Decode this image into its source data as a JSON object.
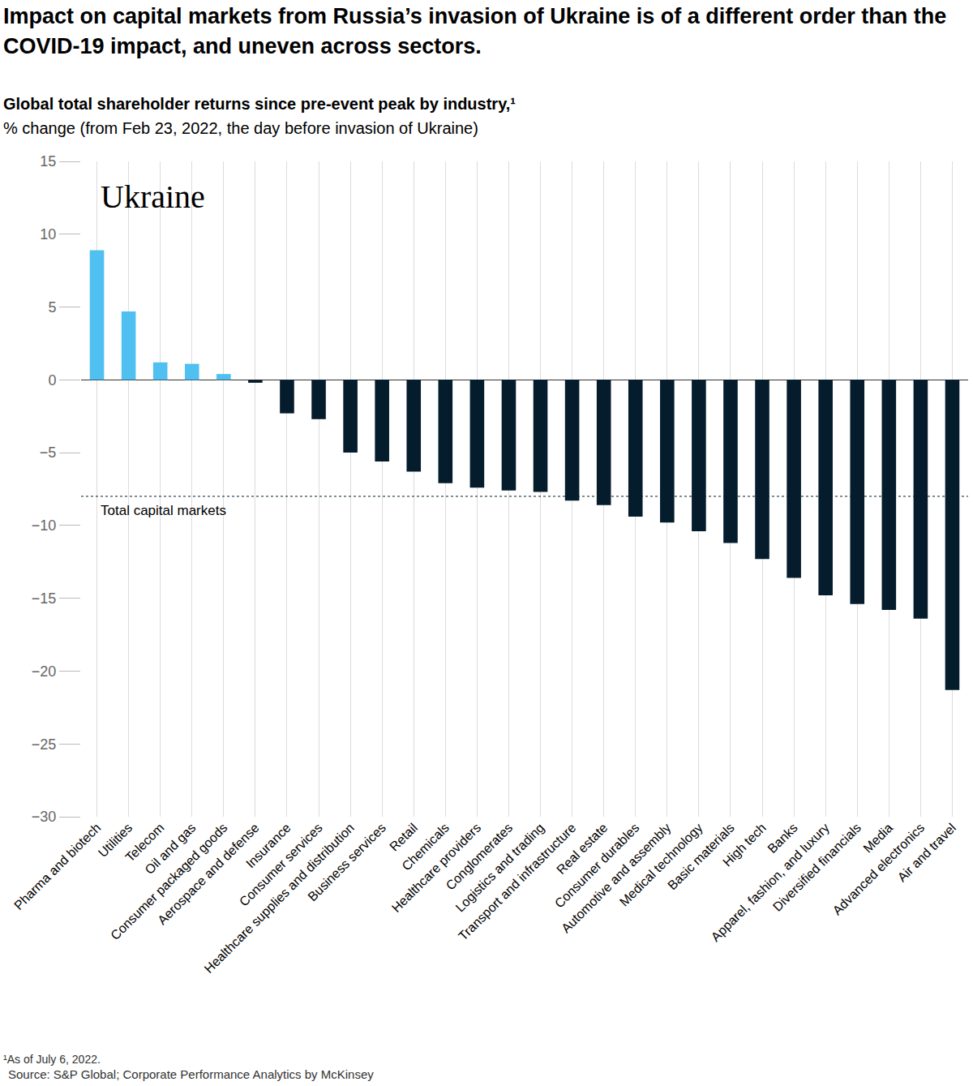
{
  "chart_data": {
    "type": "bar",
    "title": "Impact on capital markets from Russia’s invasion of Ukraine is of a different order than the COVID-19 impact, and uneven across sectors.",
    "subtitle": "Global total shareholder returns since pre-event peak by industry,¹",
    "ylabel": "% change (from Feb 23, 2022, the day before invasion of Ukraine)",
    "inset_label": "Ukraine",
    "footnote": "¹As of July 6, 2022.",
    "source": "Source: S&P Global; Corporate Performance Analytics by McKinsey",
    "categories": [
      "Pharma and biotech",
      "Utilities",
      "Telecom",
      "Oil and gas",
      "Consumer packaged goods",
      "Aerospace and defense",
      "Insurance",
      "Consumer services",
      "Healthcare supplies and distribution",
      "Business services",
      "Retail",
      "Chemicals",
      "Healthcare providers",
      "Conglomerates",
      "Logistics and trading",
      "Transport and infrastructure",
      "Real estate",
      "Consumer durables",
      "Automotive and assembly",
      "Medical technology",
      "Basic materials",
      "High tech",
      "Banks",
      "Apparel, fashion, and luxury",
      "Diversified financials",
      "Media",
      "Advanced electronics",
      "Air and travel"
    ],
    "values": [
      8.9,
      4.7,
      1.2,
      1.1,
      0.4,
      -0.2,
      -2.3,
      -2.7,
      -5.0,
      -5.6,
      -6.3,
      -7.1,
      -7.4,
      -7.6,
      -7.7,
      -8.3,
      -8.6,
      -9.4,
      -9.8,
      -10.4,
      -11.2,
      -12.3,
      -13.6,
      -14.8,
      -15.4,
      -15.8,
      -16.4,
      -21.3
    ],
    "colors": [
      "#4fc0f0",
      "#4fc0f0",
      "#4fc0f0",
      "#4fc0f0",
      "#4fc0f0",
      "#051c2c",
      "#051c2c",
      "#051c2c",
      "#051c2c",
      "#051c2c",
      "#051c2c",
      "#051c2c",
      "#051c2c",
      "#051c2c",
      "#051c2c",
      "#051c2c",
      "#051c2c",
      "#051c2c",
      "#051c2c",
      "#051c2c",
      "#051c2c",
      "#051c2c",
      "#051c2c",
      "#051c2c",
      "#051c2c",
      "#051c2c",
      "#051c2c",
      "#051c2c"
    ],
    "reference_lines": [
      {
        "label": "Total capital markets",
        "value": -8,
        "line_style": "dashed"
      }
    ],
    "ylim": [
      -30,
      15
    ],
    "yticks": [
      {
        "value": -30,
        "label": "−30"
      },
      {
        "value": -25,
        "label": "−25"
      },
      {
        "value": -20,
        "label": "−20"
      },
      {
        "value": -15,
        "label": "−15"
      },
      {
        "value": -10,
        "label": "−10"
      },
      {
        "value": -5,
        "label": "−5"
      },
      0,
      5,
      10,
      15
    ],
    "grid": true,
    "data_labels": false
  }
}
